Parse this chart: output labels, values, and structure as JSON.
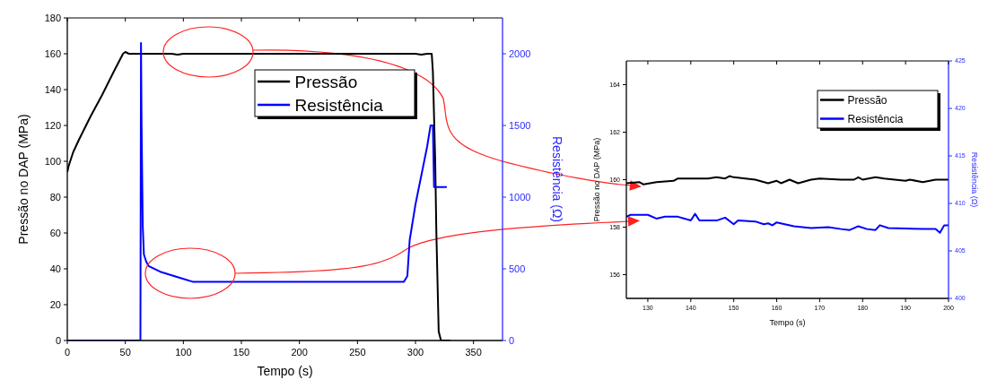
{
  "chart_data": [
    {
      "type": "line",
      "xlabel": "Tempo (s)",
      "ylabel": "Pressão no DAP (MPa)",
      "y2label": "Resistência (Ω)",
      "xlim": [
        0,
        375
      ],
      "xticks": [
        0,
        50,
        100,
        150,
        200,
        250,
        300,
        350
      ],
      "ylim": [
        0,
        180
      ],
      "yticks": [
        0,
        20,
        40,
        60,
        80,
        100,
        120,
        140,
        160,
        180
      ],
      "y2lim": [
        0,
        2250
      ],
      "y2ticks": [
        0,
        500,
        1000,
        1500,
        2000
      ],
      "legend": "top right",
      "grid": false,
      "series": [
        {
          "name": "Pressão",
          "color": "#000000",
          "x": [
            0,
            1,
            5,
            10,
            20,
            30,
            40,
            48,
            50,
            53,
            90,
            95,
            100,
            200,
            300,
            305,
            310,
            314,
            315,
            317,
            318,
            320,
            322,
            330
          ],
          "values": [
            94,
            97,
            105,
            112,
            125,
            137,
            150,
            160,
            161,
            160,
            160,
            159.5,
            160,
            160,
            160,
            159.5,
            160,
            160,
            150,
            100,
            60,
            5,
            0,
            0
          ]
        },
        {
          "name": "Resistência",
          "color": "#0000ff",
          "axis": "y2",
          "x": [
            0,
            63,
            63.5,
            64,
            65,
            66,
            68,
            70,
            80,
            90,
            100,
            108,
            290,
            293,
            295,
            300,
            305,
            310,
            313,
            315,
            316,
            327
          ],
          "values": [
            0,
            0,
            2075,
            1500,
            800,
            600,
            550,
            520,
            480,
            455,
            430,
            410,
            410,
            450,
            700,
            950,
            1150,
            1350,
            1500,
            1500,
            1070,
            1070
          ]
        }
      ]
    },
    {
      "type": "line",
      "xlabel": "Tempo (s)",
      "ylabel": "Pressão no DAP (MPa)",
      "y2label": "Resistência (Ω)",
      "xlim": [
        125,
        200
      ],
      "xticks": [
        130,
        140,
        150,
        160,
        170,
        180,
        190,
        200
      ],
      "ylim": [
        155,
        165
      ],
      "yticks": [
        156,
        158,
        160,
        162,
        164
      ],
      "y2lim": [
        400,
        425
      ],
      "y2ticks": [
        400,
        405,
        410,
        415,
        420,
        425
      ],
      "legend": "top right",
      "grid": false,
      "series": [
        {
          "name": "Pressão",
          "color": "#000000",
          "x": [
            125,
            128,
            129,
            132,
            136,
            137,
            140,
            144,
            146,
            148,
            149,
            150,
            155,
            158,
            160,
            161,
            163,
            165,
            168,
            170,
            175,
            178,
            179,
            180,
            183,
            185,
            190,
            191,
            194,
            197,
            200
          ],
          "values": [
            159.85,
            159.9,
            159.8,
            159.9,
            159.95,
            160.05,
            160.05,
            160.05,
            160.1,
            160.05,
            160.15,
            160.1,
            160,
            159.85,
            159.95,
            159.85,
            160,
            159.85,
            160,
            160.05,
            160,
            160,
            160.1,
            160,
            160.1,
            160.05,
            159.95,
            160,
            159.9,
            160,
            160
          ]
        },
        {
          "name": "Resistência",
          "color": "#0000ff",
          "axis": "y2",
          "x": [
            125,
            126,
            130,
            132,
            134,
            137,
            140,
            141,
            142,
            146,
            148,
            150,
            151,
            155,
            157,
            158,
            159,
            160,
            164,
            166,
            168,
            172,
            175,
            177,
            179,
            181,
            183,
            184,
            186,
            194,
            197,
            198,
            199,
            200
          ],
          "values": [
            408.6,
            408.8,
            408.8,
            408.4,
            408.6,
            408.6,
            408.2,
            408.9,
            408.2,
            408.2,
            408.5,
            407.8,
            408.2,
            408.1,
            407.8,
            407.9,
            407.7,
            408,
            407.6,
            407.5,
            407.4,
            407.5,
            407.3,
            407.2,
            407.6,
            407.3,
            407.2,
            407.7,
            407.4,
            407.3,
            407.3,
            406.9,
            407.7,
            407.7
          ]
        }
      ]
    }
  ]
}
